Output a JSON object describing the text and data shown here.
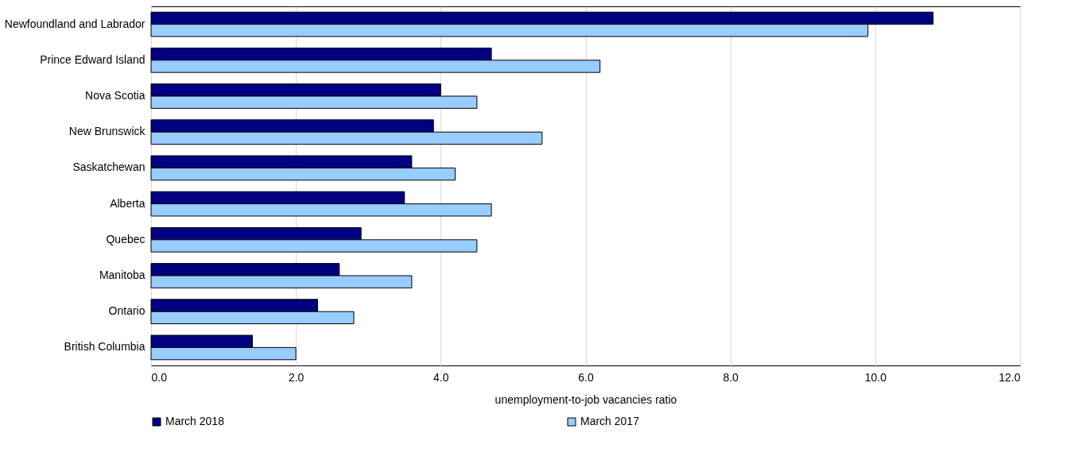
{
  "chart_data": {
    "type": "bar",
    "orientation": "horizontal",
    "xlabel": "unemployment-to-job vacancies ratio",
    "categories": [
      "Newfoundland and Labrador",
      "Prince Edward Island",
      "Nova Scotia",
      "New Brunswick",
      "Saskatchewan",
      "Alberta",
      "Quebec",
      "Manitoba",
      "Ontario",
      "British Columbia"
    ],
    "series": [
      {
        "name": "March 2018",
        "color": "#000080",
        "values": [
          10.8,
          4.7,
          4.0,
          3.9,
          3.6,
          3.5,
          2.9,
          2.6,
          2.3,
          1.4
        ]
      },
      {
        "name": "March 2017",
        "color": "#99ccff",
        "values": [
          9.9,
          6.2,
          4.5,
          5.4,
          4.2,
          4.7,
          4.5,
          3.6,
          2.8,
          2.0
        ]
      }
    ],
    "xlim": [
      0,
      12
    ],
    "xticks": [
      {
        "value": 0,
        "label": "0.0"
      },
      {
        "value": 2,
        "label": "2.0"
      },
      {
        "value": 4,
        "label": "4.0"
      },
      {
        "value": 6,
        "label": "6.0"
      },
      {
        "value": 8,
        "label": "8.0"
      },
      {
        "value": 10,
        "label": "10.0"
      },
      {
        "value": 12,
        "label": "12.0"
      }
    ],
    "grid": "x",
    "legend": "bottom"
  }
}
